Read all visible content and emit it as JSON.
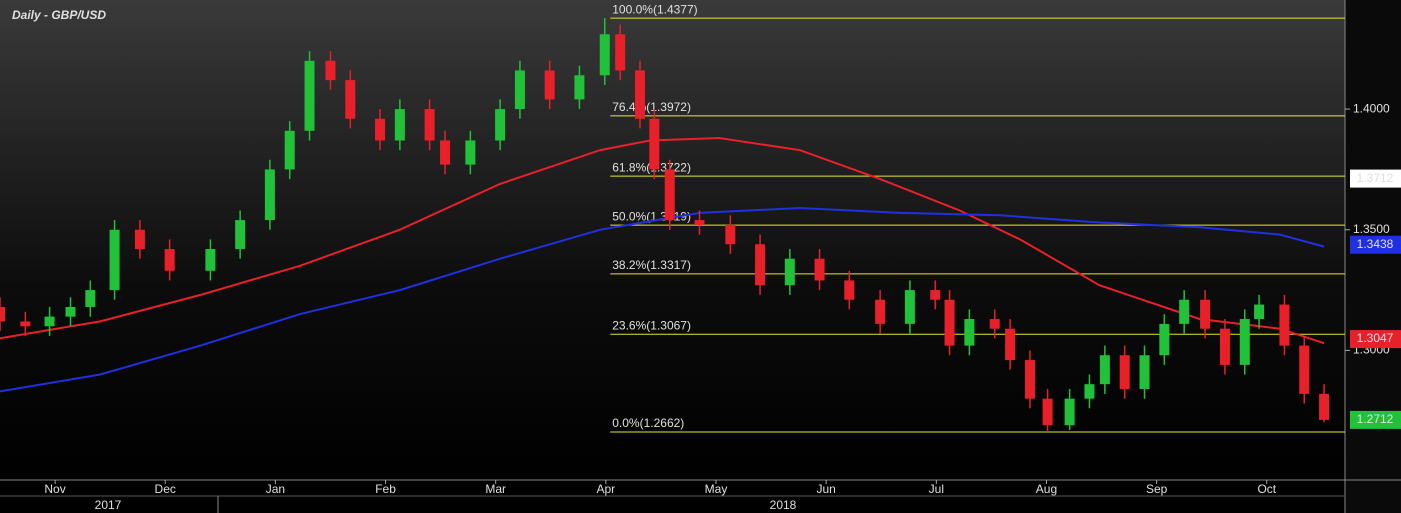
{
  "chart_data": {
    "type": "candlestick",
    "title": "Daily - GBP/USD",
    "xlim": [
      0.5,
      12.71
    ],
    "xticks": [
      {
        "value": 1,
        "label": "Nov"
      },
      {
        "value": 2,
        "label": "Dec"
      },
      {
        "value": 3,
        "label": "Jan"
      },
      {
        "value": 4,
        "label": "Feb"
      },
      {
        "value": 5,
        "label": "Mar"
      },
      {
        "value": 6,
        "label": "Apr"
      },
      {
        "value": 7,
        "label": "May"
      },
      {
        "value": 8,
        "label": "Jun"
      },
      {
        "value": 9,
        "label": "Jul"
      },
      {
        "value": 10,
        "label": "Aug"
      },
      {
        "value": 11,
        "label": "Sep"
      },
      {
        "value": 12,
        "label": "Oct"
      }
    ],
    "years": [
      "2017",
      "2018"
    ],
    "ylim": [
      1.2463,
      1.4452
    ],
    "yticks": [
      {
        "value": 1.4,
        "label": "1.4000"
      },
      {
        "value": 1.35,
        "label": "1.3500"
      },
      {
        "value": 1.3,
        "label": "1.3000"
      }
    ],
    "candles": {
      "up_color": "#21c23a",
      "down_color": "#e8202a",
      "x": [
        0.5,
        0.73,
        0.95,
        1.14,
        1.32,
        1.54,
        1.77,
        2.04,
        2.41,
        2.68,
        2.95,
        3.13,
        3.31,
        3.5,
        3.68,
        3.95,
        4.13,
        4.4,
        4.54,
        4.77,
        5.04,
        5.22,
        5.49,
        5.76,
        5.99,
        6.13,
        6.31,
        6.44,
        6.58,
        6.85,
        7.13,
        7.4,
        7.67,
        7.94,
        8.21,
        8.49,
        8.76,
        8.99,
        9.12,
        9.3,
        9.53,
        9.67,
        9.85,
        10.01,
        10.21,
        10.39,
        10.53,
        10.71,
        10.89,
        11.07,
        11.25,
        11.44,
        11.62,
        11.8,
        11.93,
        12.16,
        12.34,
        12.52
      ],
      "open": [
        1.318,
        1.312,
        1.31,
        1.314,
        1.318,
        1.325,
        1.35,
        1.342,
        1.333,
        1.342,
        1.354,
        1.375,
        1.391,
        1.42,
        1.412,
        1.396,
        1.387,
        1.4,
        1.387,
        1.377,
        1.387,
        1.4,
        1.416,
        1.404,
        1.414,
        1.431,
        1.416,
        1.396,
        1.375,
        1.354,
        1.352,
        1.344,
        1.327,
        1.338,
        1.329,
        1.321,
        1.311,
        1.325,
        1.321,
        1.302,
        1.313,
        1.309,
        1.296,
        1.28,
        1.269,
        1.28,
        1.286,
        1.298,
        1.284,
        1.298,
        1.311,
        1.321,
        1.309,
        1.294,
        1.313,
        1.319,
        1.302,
        1.282
      ],
      "high": [
        1.322,
        1.316,
        1.318,
        1.322,
        1.329,
        1.354,
        1.354,
        1.346,
        1.346,
        1.358,
        1.379,
        1.395,
        1.424,
        1.424,
        1.416,
        1.4,
        1.404,
        1.404,
        1.391,
        1.391,
        1.404,
        1.42,
        1.42,
        1.418,
        1.4377,
        1.435,
        1.42,
        1.4,
        1.379,
        1.358,
        1.356,
        1.348,
        1.342,
        1.342,
        1.333,
        1.325,
        1.329,
        1.329,
        1.325,
        1.317,
        1.317,
        1.313,
        1.3,
        1.284,
        1.284,
        1.29,
        1.302,
        1.302,
        1.302,
        1.315,
        1.325,
        1.325,
        1.313,
        1.317,
        1.323,
        1.323,
        1.306,
        1.286
      ],
      "low": [
        1.308,
        1.306,
        1.306,
        1.31,
        1.314,
        1.321,
        1.338,
        1.329,
        1.329,
        1.338,
        1.35,
        1.371,
        1.387,
        1.408,
        1.392,
        1.383,
        1.383,
        1.383,
        1.373,
        1.373,
        1.383,
        1.396,
        1.4,
        1.4,
        1.41,
        1.412,
        1.392,
        1.371,
        1.35,
        1.348,
        1.34,
        1.323,
        1.323,
        1.325,
        1.317,
        1.307,
        1.307,
        1.317,
        1.298,
        1.298,
        1.305,
        1.292,
        1.276,
        1.2662,
        1.267,
        1.276,
        1.282,
        1.28,
        1.28,
        1.294,
        1.307,
        1.305,
        1.29,
        1.29,
        1.309,
        1.298,
        1.278,
        1.2702
      ],
      "close": [
        1.312,
        1.31,
        1.314,
        1.318,
        1.325,
        1.35,
        1.342,
        1.333,
        1.342,
        1.354,
        1.375,
        1.391,
        1.42,
        1.412,
        1.396,
        1.387,
        1.4,
        1.387,
        1.377,
        1.387,
        1.4,
        1.416,
        1.404,
        1.414,
        1.431,
        1.416,
        1.396,
        1.375,
        1.354,
        1.352,
        1.344,
        1.327,
        1.338,
        1.329,
        1.321,
        1.311,
        1.325,
        1.321,
        1.302,
        1.313,
        1.309,
        1.296,
        1.28,
        1.269,
        1.28,
        1.286,
        1.298,
        1.284,
        1.298,
        1.311,
        1.321,
        1.309,
        1.294,
        1.313,
        1.319,
        1.302,
        1.282,
        1.2712
      ]
    },
    "series": [
      {
        "color": "#e8202a",
        "x": [
          0.5,
          1.41,
          2.32,
          3.22,
          4.13,
          5.04,
          5.95,
          6.4,
          7.03,
          7.76,
          8.49,
          9.21,
          9.76,
          10.48,
          11.39,
          12.12,
          12.52
        ],
        "values": [
          1.305,
          1.312,
          1.323,
          1.335,
          1.35,
          1.369,
          1.383,
          1.387,
          1.388,
          1.383,
          1.371,
          1.358,
          1.346,
          1.327,
          1.313,
          1.309,
          1.303
        ]
      },
      {
        "color": "#2030e0",
        "x": [
          0.5,
          1.41,
          2.32,
          3.22,
          4.13,
          5.04,
          5.95,
          6.85,
          7.76,
          8.67,
          9.58,
          10.48,
          11.39,
          12.12,
          12.52
        ],
        "values": [
          1.283,
          1.29,
          1.302,
          1.315,
          1.325,
          1.338,
          1.35,
          1.357,
          1.359,
          1.357,
          1.356,
          1.353,
          1.351,
          1.348,
          1.343
        ]
      }
    ],
    "fib_start": 6.04,
    "fib_color": "#e6e62e",
    "fib": [
      {
        "value": 1.4377,
        "label": "100.0%(1.4377)"
      },
      {
        "value": 1.3972,
        "label": "76.4%(1.3972)"
      },
      {
        "value": 1.3722,
        "label": "61.8%(1.3722)"
      },
      {
        "value": 1.3519,
        "label": "50.0%(1.3519)"
      },
      {
        "value": 1.3317,
        "label": "38.2%(1.3317)"
      },
      {
        "value": 1.3067,
        "label": "23.6%(1.3067)"
      },
      {
        "value": 1.2662,
        "label": "0.0%(1.2662)"
      }
    ],
    "price_tags": [
      {
        "value": 1.3712,
        "color": "#ffffff",
        "text_color": "#000000"
      },
      {
        "value": 1.3438,
        "color": "#2030e0",
        "text_color": "#ffffff"
      },
      {
        "value": 1.3047,
        "color": "#e8202a",
        "text_color": "#ffffff"
      },
      {
        "value": 1.2712,
        "color": "#21c23a",
        "text_color": "#000000"
      }
    ]
  }
}
